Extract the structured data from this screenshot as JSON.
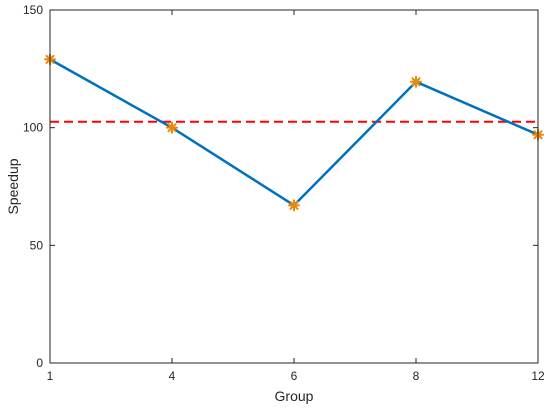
{
  "chart_data": {
    "type": "line",
    "title": "",
    "xlabel": "Group",
    "ylabel": "Speedup",
    "categories": [
      "1",
      "4",
      "6",
      "8",
      "12"
    ],
    "ylim": [
      0,
      150
    ],
    "yticks": [
      0,
      50,
      100,
      150
    ],
    "grid": false,
    "series": [
      {
        "name": "",
        "values": [
          129,
          100,
          67,
          119.5,
          97
        ],
        "color": "#0072BD",
        "marker": "asterisk",
        "marker_color": "#E8890C"
      }
    ],
    "reference_lines": [
      {
        "value": 102.5,
        "color": "#FF0000",
        "style": "dashed"
      }
    ]
  }
}
